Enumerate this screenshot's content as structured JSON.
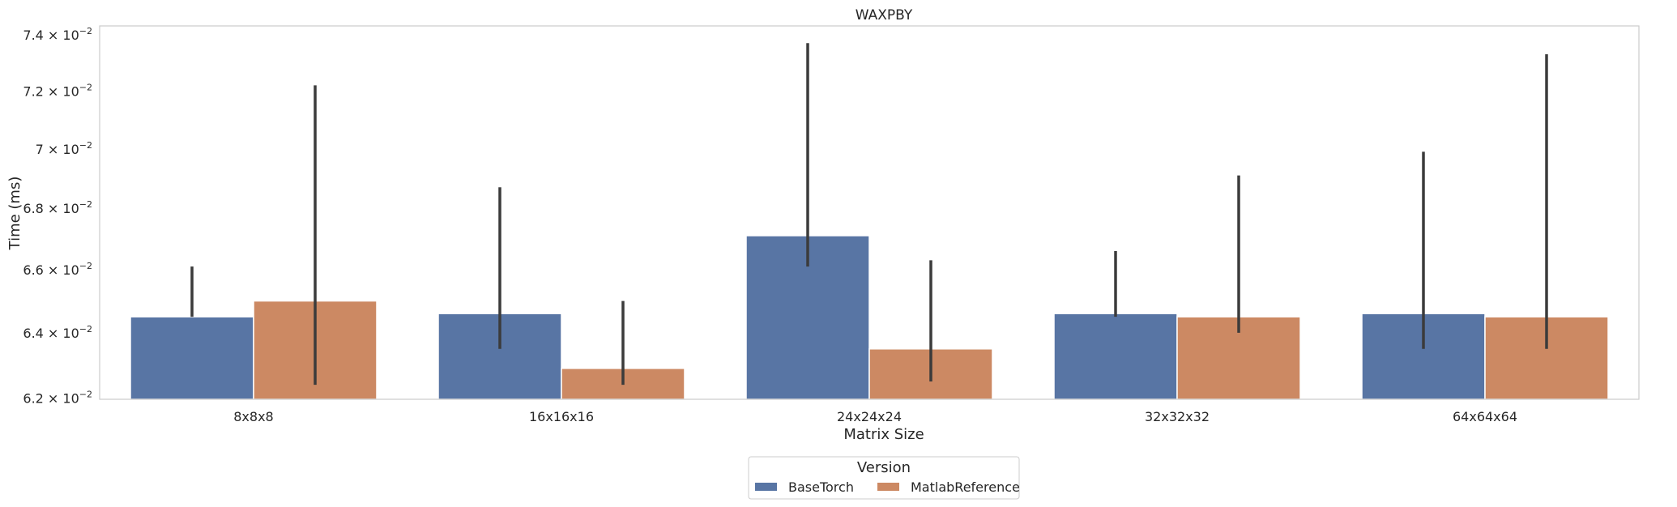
{
  "chart_data": {
    "type": "bar",
    "title": "WAXPBY",
    "xlabel": "Matrix Size",
    "ylabel": "Time (ms)",
    "categories": [
      "8x8x8",
      "16x16x16",
      "24x24x24",
      "32x32x32",
      "64x64x64"
    ],
    "y_scale": "log",
    "ylim": [
      0.06196,
      0.07432
    ],
    "y_ticks": [
      0.062,
      0.064,
      0.066,
      0.068,
      0.07,
      0.072,
      0.074
    ],
    "y_tick_labels": [
      {
        "mantissa": "6.2",
        "exp": "−2"
      },
      {
        "mantissa": "6.4",
        "exp": "−2"
      },
      {
        "mantissa": "6.6",
        "exp": "−2"
      },
      {
        "mantissa": "6.8",
        "exp": "−2"
      },
      {
        "mantissa": "7",
        "exp": "−2"
      },
      {
        "mantissa": "7.2",
        "exp": "−2"
      },
      {
        "mantissa": "7.4",
        "exp": "−2"
      }
    ],
    "y_tick_base": "10",
    "grid": false,
    "legend": {
      "title": "Version",
      "placement": "bottom-center"
    },
    "series": [
      {
        "name": "BaseTorch",
        "color": "#5875a4",
        "values": [
          0.0645,
          0.0646,
          0.0671,
          0.0646,
          0.0646
        ],
        "error_low": [
          0.0645,
          0.0635,
          0.0661,
          0.0645,
          0.0635
        ],
        "error_high": [
          0.0661,
          0.0687,
          0.0737,
          0.0666,
          0.0699
        ]
      },
      {
        "name": "MatlabReference",
        "color": "#cc8963",
        "values": [
          0.065,
          0.0629,
          0.0635,
          0.0645,
          0.0645
        ],
        "error_low": [
          0.0624,
          0.0624,
          0.0625,
          0.064,
          0.0635
        ],
        "error_high": [
          0.0722,
          0.065,
          0.0663,
          0.0691,
          0.0733
        ]
      }
    ]
  }
}
